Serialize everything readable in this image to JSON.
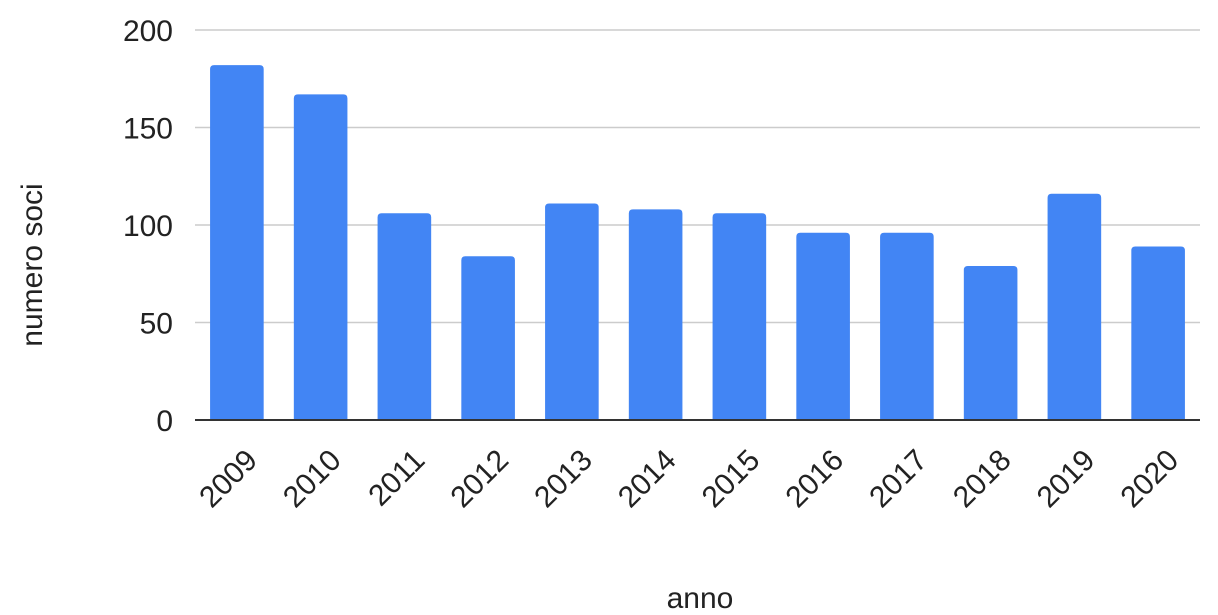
{
  "chart_data": {
    "type": "bar",
    "categories": [
      "2009",
      "2010",
      "2011",
      "2012",
      "2013",
      "2014",
      "2015",
      "2016",
      "2017",
      "2018",
      "2019",
      "2020"
    ],
    "values": [
      182,
      167,
      106,
      84,
      111,
      108,
      106,
      96,
      96,
      79,
      116,
      89
    ],
    "xlabel": "anno",
    "ylabel": "numero soci",
    "ylim": [
      0,
      200
    ],
    "yticks": [
      0,
      50,
      100,
      150,
      200
    ],
    "grid": true,
    "legend": "none",
    "colors": {
      "bar": "#4285f4",
      "grid": "#cccccc",
      "axis": "#333333"
    }
  }
}
